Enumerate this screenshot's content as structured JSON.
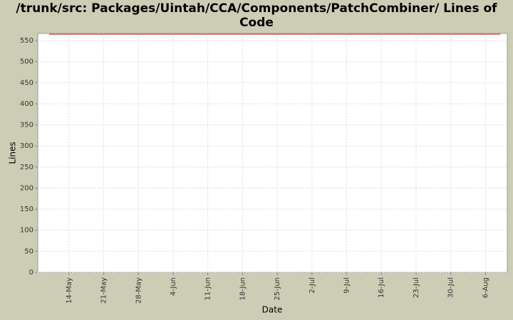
{
  "chart_data": {
    "type": "line",
    "title": "/trunk/src: Packages/Uintah/CCA/Components/PatchCombiner/ Lines of Code",
    "x_label": "Date",
    "y_label": "Lines",
    "x": [
      -4,
      87
    ],
    "series": [
      {
        "name": "Lines",
        "color": "#d46a6a",
        "values": [
          565,
          565
        ]
      }
    ],
    "xlim": [
      -6.3,
      88.4
    ],
    "xticks": [
      {
        "value": 0,
        "label": "14-May"
      },
      {
        "value": 7,
        "label": "21-May"
      },
      {
        "value": 14,
        "label": "28-May"
      },
      {
        "value": 21,
        "label": "4-Jun"
      },
      {
        "value": 28,
        "label": "11-Jun"
      },
      {
        "value": 35,
        "label": "18-Jun"
      },
      {
        "value": 42,
        "label": "25-Jun"
      },
      {
        "value": 49,
        "label": "2-Jul"
      },
      {
        "value": 56,
        "label": "9-Jul"
      },
      {
        "value": 63,
        "label": "16-Jul"
      },
      {
        "value": 70,
        "label": "23-Jul"
      },
      {
        "value": 77,
        "label": "30-Jul"
      },
      {
        "value": 84,
        "label": "6-Aug"
      }
    ],
    "ylim": [
      0,
      567
    ],
    "yticks": [
      0,
      50,
      100,
      150,
      200,
      250,
      300,
      350,
      400,
      450,
      500,
      550
    ],
    "grid": true
  }
}
